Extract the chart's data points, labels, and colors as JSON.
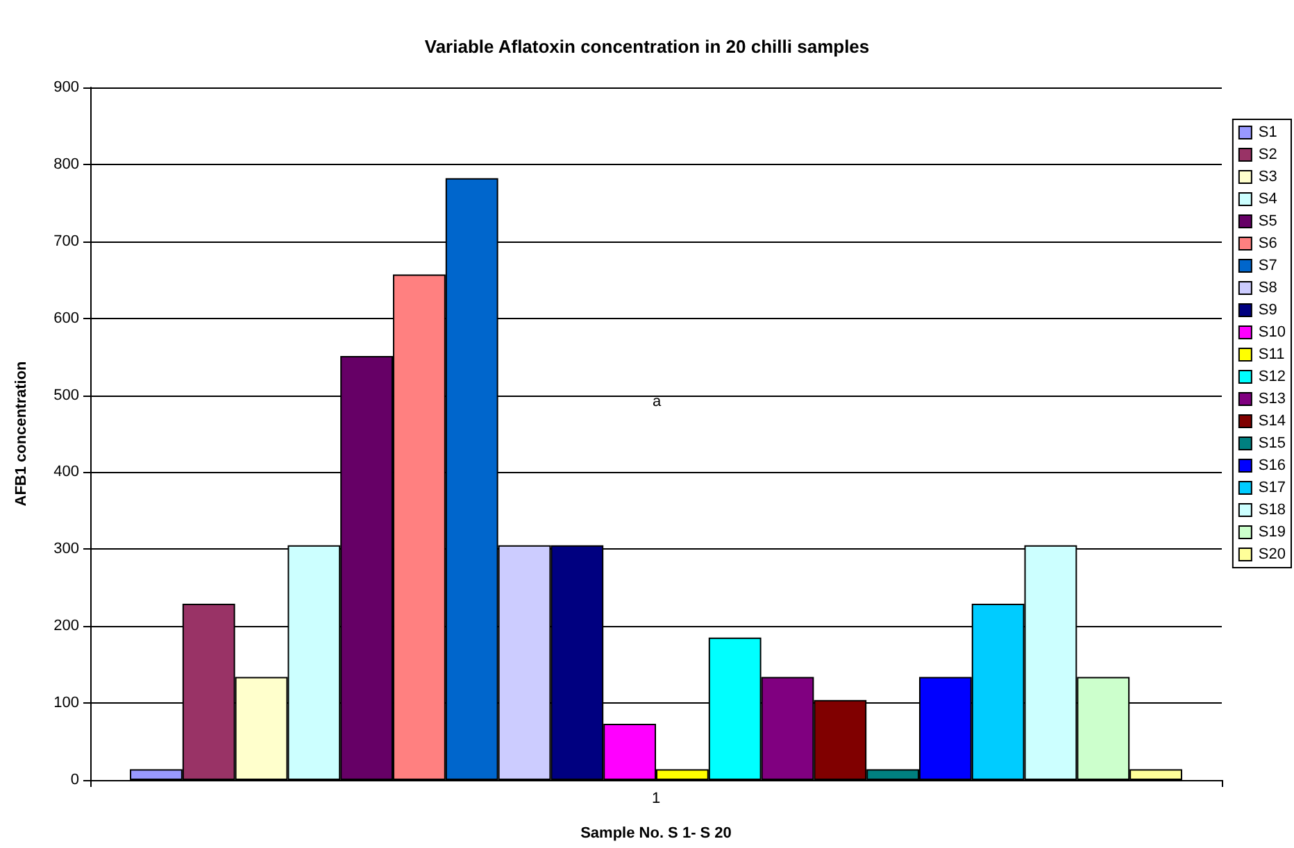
{
  "chart_data": {
    "type": "bar",
    "title": "Variable Aflatoxin concentration in 20 chilli samples",
    "xlabel": "Sample No. S 1- S 20",
    "ylabel": "AFB1 concentration",
    "categories": [
      "1"
    ],
    "series": [
      {
        "name": "S1",
        "color": "#9999ff",
        "values": [
          14
        ]
      },
      {
        "name": "S2",
        "color": "#993366",
        "values": [
          229
        ]
      },
      {
        "name": "S3",
        "color": "#ffffcc",
        "values": [
          134
        ]
      },
      {
        "name": "S4",
        "color": "#ccffff",
        "values": [
          305
        ]
      },
      {
        "name": "S5",
        "color": "#660066",
        "values": [
          551
        ]
      },
      {
        "name": "S6",
        "color": "#ff8080",
        "values": [
          657
        ]
      },
      {
        "name": "S7",
        "color": "#0066cc",
        "values": [
          782
        ]
      },
      {
        "name": "S8",
        "color": "#ccccff",
        "values": [
          305
        ]
      },
      {
        "name": "S9",
        "color": "#000080",
        "values": [
          305
        ]
      },
      {
        "name": "S10",
        "color": "#ff00ff",
        "values": [
          73
        ]
      },
      {
        "name": "S11",
        "color": "#ffff00",
        "values": [
          14
        ]
      },
      {
        "name": "S12",
        "color": "#00ffff",
        "values": [
          185
        ]
      },
      {
        "name": "S13",
        "color": "#800080",
        "values": [
          134
        ]
      },
      {
        "name": "S14",
        "color": "#800000",
        "values": [
          104
        ]
      },
      {
        "name": "S15",
        "color": "#008080",
        "values": [
          14
        ]
      },
      {
        "name": "S16",
        "color": "#0000ff",
        "values": [
          134
        ]
      },
      {
        "name": "S17",
        "color": "#00ccff",
        "values": [
          229
        ]
      },
      {
        "name": "S18",
        "color": "#ccffff",
        "values": [
          305
        ]
      },
      {
        "name": "S19",
        "color": "#ccffcc",
        "values": [
          134
        ]
      },
      {
        "name": "S20",
        "color": "#ffff99",
        "values": [
          14
        ]
      }
    ],
    "ylim": [
      0,
      900
    ],
    "yticks": [
      0,
      100,
      200,
      300,
      400,
      500,
      600,
      700,
      800,
      900
    ],
    "grid": "y",
    "legend": "right",
    "annotations": [
      "a"
    ]
  }
}
